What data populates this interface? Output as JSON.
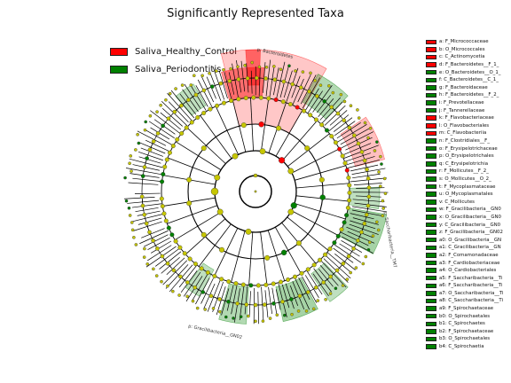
{
  "title": "Significantly Represented Taxa",
  "colors": {
    "healthy": "#ff0000",
    "periodontitis": "#008000",
    "node": "#c6c600",
    "line": "#000000"
  },
  "groups": [
    {
      "label": "Saliva_Healthy_Control",
      "color": "#ff0000"
    },
    {
      "label": "Saliva_Periodontitis",
      "color": "#008000"
    }
  ],
  "taxa": [
    {
      "label": "a: F_Micrococcaceae",
      "color": "#ff0000"
    },
    {
      "label": "b: O_Micrococcales",
      "color": "#ff0000"
    },
    {
      "label": "c: C_Actinomycetia",
      "color": "#ff0000"
    },
    {
      "label": "d: F_Bacteroidetes__F_1_",
      "color": "#ff0000"
    },
    {
      "label": "e: O_Bacteroidetes__O_1_",
      "color": "#008000"
    },
    {
      "label": "f: C_Bacteroidetes__C_1_",
      "color": "#008000"
    },
    {
      "label": "g: F_Bacteroidaceae",
      "color": "#008000"
    },
    {
      "label": "h: F_Bacteroidetes__F_2_",
      "color": "#008000"
    },
    {
      "label": "i: F_Prevotellaceae",
      "color": "#008000"
    },
    {
      "label": "j: F_Tannerellaceae",
      "color": "#008000"
    },
    {
      "label": "k: F_Flavobacteriaceae",
      "color": "#ff0000"
    },
    {
      "label": "l: O_Flavobacteriales",
      "color": "#ff0000"
    },
    {
      "label": "m: C_Flavobacteriia",
      "color": "#ff0000"
    },
    {
      "label": "n: F_Clostridiales__F_",
      "color": "#008000"
    },
    {
      "label": "o: F_Erysipelotrichaceae",
      "color": "#008000"
    },
    {
      "label": "p: O_Erysipelotrichales",
      "color": "#008000"
    },
    {
      "label": "q: C_Erysipelotrichia",
      "color": "#008000"
    },
    {
      "label": "r: F_Mollicutes__F_2_",
      "color": "#008000"
    },
    {
      "label": "s: O_Mollicutes__O_2_",
      "color": "#008000"
    },
    {
      "label": "t: F_Mycoplasmataceae",
      "color": "#008000"
    },
    {
      "label": "u: O_Mycoplasmatales",
      "color": "#008000"
    },
    {
      "label": "v: C_Mollicutes",
      "color": "#008000"
    },
    {
      "label": "w: F_Gracilibacteria__GN0",
      "color": "#008000"
    },
    {
      "label": "x: O_Gracilibacteria__GN0",
      "color": "#008000"
    },
    {
      "label": "y: C_Gracilibacteria__GN0",
      "color": "#008000"
    },
    {
      "label": "z: F_Gracilibacteria__GN02",
      "color": "#008000"
    },
    {
      "label": "a0: O_Gracilibacteria__GN",
      "color": "#008000"
    },
    {
      "label": "a1: C_Gracilibacteria__GN",
      "color": "#008000"
    },
    {
      "label": "a2: F_Comamonadaceae",
      "color": "#008000"
    },
    {
      "label": "a3: F_Cardiobacteriaceae",
      "color": "#008000"
    },
    {
      "label": "a4: O_Cardiobacteriales",
      "color": "#008000"
    },
    {
      "label": "a5: F_Saccharibacteria__Ti",
      "color": "#008000"
    },
    {
      "label": "a6: F_Saccharibacteria__Ti",
      "color": "#008000"
    },
    {
      "label": "a7: O_Saccharibacteria__Ti",
      "color": "#008000"
    },
    {
      "label": "a8: C_Saccharibacteria__Ti",
      "color": "#008000"
    },
    {
      "label": "a9: F_Spirochaetaceae",
      "color": "#008000"
    },
    {
      "label": "b0: O_Spirochaetales",
      "color": "#008000"
    },
    {
      "label": "b1: C_Spirochaetes",
      "color": "#008000"
    },
    {
      "label": "b2: F_Spirochaetaceae",
      "color": "#008000"
    },
    {
      "label": "b3: O_Spirochaetales",
      "color": "#008000"
    },
    {
      "label": "b4: C_Spirochaetia",
      "color": "#008000"
    }
  ],
  "clade_labels": {
    "bacteroidetes": "p: Bacteroidetes",
    "gracilibacteria": "p: Gracilibacteria__GN02",
    "saccharibacteria": "p: Saccharibacteria__TM7"
  }
}
